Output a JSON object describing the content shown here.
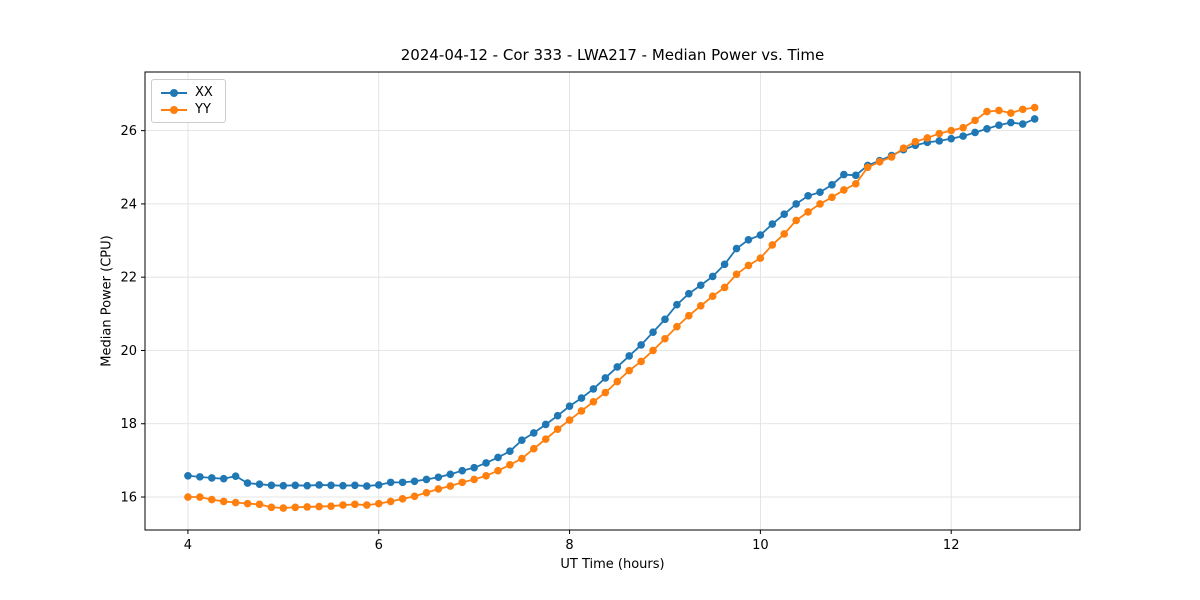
{
  "chart_data": {
    "type": "line",
    "title": "2024-04-12 - Cor 333 - LWA217 - Median Power vs. Time",
    "xlabel": "UT Time (hours)",
    "ylabel": "Median Power (CPU)",
    "xlim": [
      3.55,
      13.35
    ],
    "ylim": [
      15.1,
      27.6
    ],
    "xticks": [
      4,
      6,
      8,
      10,
      12
    ],
    "yticks": [
      16,
      18,
      20,
      22,
      24,
      26
    ],
    "grid": true,
    "grid_color": "#dedede",
    "legend_position": "upper left",
    "x": [
      4.0,
      4.125,
      4.25,
      4.375,
      4.5,
      4.625,
      4.75,
      4.875,
      5.0,
      5.125,
      5.25,
      5.375,
      5.5,
      5.625,
      5.75,
      5.875,
      6.0,
      6.125,
      6.25,
      6.375,
      6.5,
      6.625,
      6.75,
      6.875,
      7.0,
      7.125,
      7.25,
      7.375,
      7.5,
      7.625,
      7.75,
      7.875,
      8.0,
      8.125,
      8.25,
      8.375,
      8.5,
      8.625,
      8.75,
      8.875,
      9.0,
      9.125,
      9.25,
      9.375,
      9.5,
      9.625,
      9.75,
      9.875,
      10.0,
      10.125,
      10.25,
      10.375,
      10.5,
      10.625,
      10.75,
      10.875,
      11.0,
      11.125,
      11.25,
      11.375,
      11.5,
      11.625,
      11.75,
      11.875,
      12.0,
      12.125,
      12.25,
      12.375,
      12.5,
      12.625,
      12.75,
      12.875
    ],
    "series": [
      {
        "name": "XX",
        "color": "#1f77b4",
        "marker": "circle",
        "values": [
          16.58,
          16.55,
          16.52,
          16.5,
          16.57,
          16.38,
          16.35,
          16.32,
          16.31,
          16.32,
          16.31,
          16.33,
          16.32,
          16.31,
          16.32,
          16.3,
          16.33,
          16.4,
          16.4,
          16.43,
          16.48,
          16.54,
          16.62,
          16.72,
          16.8,
          16.93,
          17.08,
          17.25,
          17.55,
          17.75,
          17.98,
          18.22,
          18.48,
          18.7,
          18.95,
          19.25,
          19.55,
          19.85,
          20.15,
          20.5,
          20.85,
          21.25,
          21.55,
          21.78,
          22.02,
          22.35,
          22.78,
          23.02,
          23.15,
          23.45,
          23.72,
          24.0,
          24.22,
          24.32,
          24.52,
          24.8,
          24.78,
          25.05,
          25.18,
          25.32,
          25.48,
          25.6,
          25.68,
          25.72,
          25.78,
          25.85,
          25.95,
          26.05,
          26.15,
          26.22,
          26.18,
          26.32
        ]
      },
      {
        "name": "YY",
        "color": "#ff7f0e",
        "marker": "circle",
        "values": [
          16.0,
          16.0,
          15.93,
          15.88,
          15.85,
          15.82,
          15.8,
          15.72,
          15.7,
          15.72,
          15.73,
          15.74,
          15.75,
          15.78,
          15.8,
          15.78,
          15.82,
          15.88,
          15.95,
          16.02,
          16.12,
          16.22,
          16.3,
          16.4,
          16.48,
          16.58,
          16.72,
          16.88,
          17.05,
          17.32,
          17.58,
          17.85,
          18.1,
          18.35,
          18.6,
          18.85,
          19.15,
          19.45,
          19.7,
          20.0,
          20.32,
          20.65,
          20.95,
          21.22,
          21.48,
          21.72,
          22.08,
          22.32,
          22.52,
          22.88,
          23.18,
          23.55,
          23.78,
          24.0,
          24.18,
          24.38,
          24.55,
          25.0,
          25.15,
          25.28,
          25.52,
          25.7,
          25.8,
          25.92,
          26.0,
          26.08,
          26.28,
          26.52,
          26.55,
          26.48,
          26.58,
          26.63
        ]
      }
    ]
  }
}
